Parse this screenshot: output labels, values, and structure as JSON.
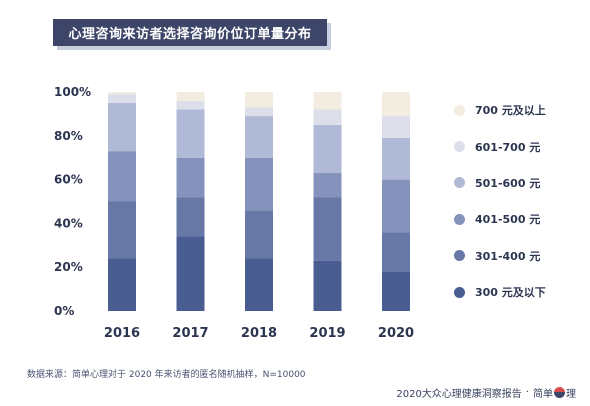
{
  "chart_data": {
    "type": "bar",
    "stacked": true,
    "title": "心理咨询来访者选择咨询价位订单量分布",
    "categories": [
      "2016",
      "2017",
      "2018",
      "2019",
      "2020"
    ],
    "ylim": [
      0,
      100
    ],
    "yticks": [
      "0%",
      "20%",
      "40%",
      "60%",
      "80%",
      "100%"
    ],
    "series": [
      {
        "name": "300 元及以下",
        "color": "#4a5d91",
        "values": [
          24,
          34,
          24,
          23,
          18
        ]
      },
      {
        "name": "301-400 元",
        "color": "#6777a6",
        "values": [
          26,
          18,
          22,
          29,
          18
        ]
      },
      {
        "name": "401-500 元",
        "color": "#8592bc",
        "values": [
          23,
          18,
          24,
          11,
          24
        ]
      },
      {
        "name": "501-600 元",
        "color": "#b0b9d5",
        "values": [
          22,
          22,
          19,
          22,
          19
        ]
      },
      {
        "name": "601-700 元",
        "color": "#dcdfea",
        "values": [
          4,
          4,
          4,
          7,
          10
        ]
      },
      {
        "name": "700 元及以上",
        "color": "#f2ede0",
        "values": [
          1,
          4,
          7,
          8,
          11
        ]
      }
    ],
    "legend_position": "right",
    "grid": false
  },
  "source_note": "数据来源：简单心理对于 2020 年来访者的匿名随机抽样，N=10000",
  "footer": {
    "report": "2020大众心理健康洞察报告",
    "separator": "·",
    "brand_left": "简单",
    "brand_right": "理"
  }
}
